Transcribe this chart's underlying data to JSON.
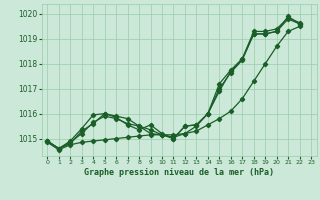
{
  "xlabel": "Graphe pression niveau de la mer (hPa)",
  "ylim": [
    1014.3,
    1020.4
  ],
  "xlim": [
    -0.5,
    23.5
  ],
  "yticks": [
    1015,
    1016,
    1017,
    1018,
    1019,
    1020
  ],
  "xticks": [
    0,
    1,
    2,
    3,
    4,
    5,
    6,
    7,
    8,
    9,
    10,
    11,
    12,
    13,
    14,
    15,
    16,
    17,
    18,
    19,
    20,
    21,
    22,
    23
  ],
  "background_color": "#cce8d8",
  "grid_color": "#99ccaa",
  "line_color": "#1a5e28",
  "x_values": [
    0,
    1,
    2,
    3,
    4,
    5,
    6,
    7,
    8,
    9,
    10,
    11,
    12,
    13,
    14,
    15,
    16,
    17,
    18,
    19,
    20,
    21,
    22
  ],
  "lines": [
    [
      1014.9,
      1014.6,
      1014.8,
      1015.3,
      1015.6,
      1016.0,
      1015.9,
      1015.8,
      1015.5,
      1015.2,
      1015.15,
      1015.0,
      1015.5,
      1015.55,
      1016.0,
      1017.2,
      1017.75,
      1018.2,
      1019.3,
      1019.3,
      1019.4,
      1019.85,
      1019.65
    ],
    [
      1014.9,
      1014.6,
      1014.85,
      1015.2,
      1015.65,
      1015.9,
      1015.8,
      1015.6,
      1015.5,
      1015.35,
      1015.15,
      1015.05,
      1015.2,
      1015.5,
      1016.0,
      1017.0,
      1017.65,
      1018.15,
      1019.2,
      1019.2,
      1019.3,
      1019.8,
      1019.6
    ],
    [
      1014.9,
      1014.6,
      1014.9,
      1015.4,
      1015.95,
      1016.0,
      1015.85,
      1015.55,
      1015.35,
      1015.55,
      1015.2,
      1015.0,
      1015.5,
      1015.55,
      1016.0,
      1016.9,
      1017.7,
      1018.2,
      1019.2,
      1019.2,
      1019.3,
      1019.9,
      1019.6
    ],
    [
      1014.85,
      1014.55,
      1014.75,
      1014.85,
      1014.9,
      1014.95,
      1015.0,
      1015.05,
      1015.1,
      1015.15,
      1015.15,
      1015.15,
      1015.2,
      1015.3,
      1015.55,
      1015.8,
      1016.1,
      1016.6,
      1017.3,
      1018.0,
      1018.7,
      1019.3,
      1019.5
    ]
  ]
}
